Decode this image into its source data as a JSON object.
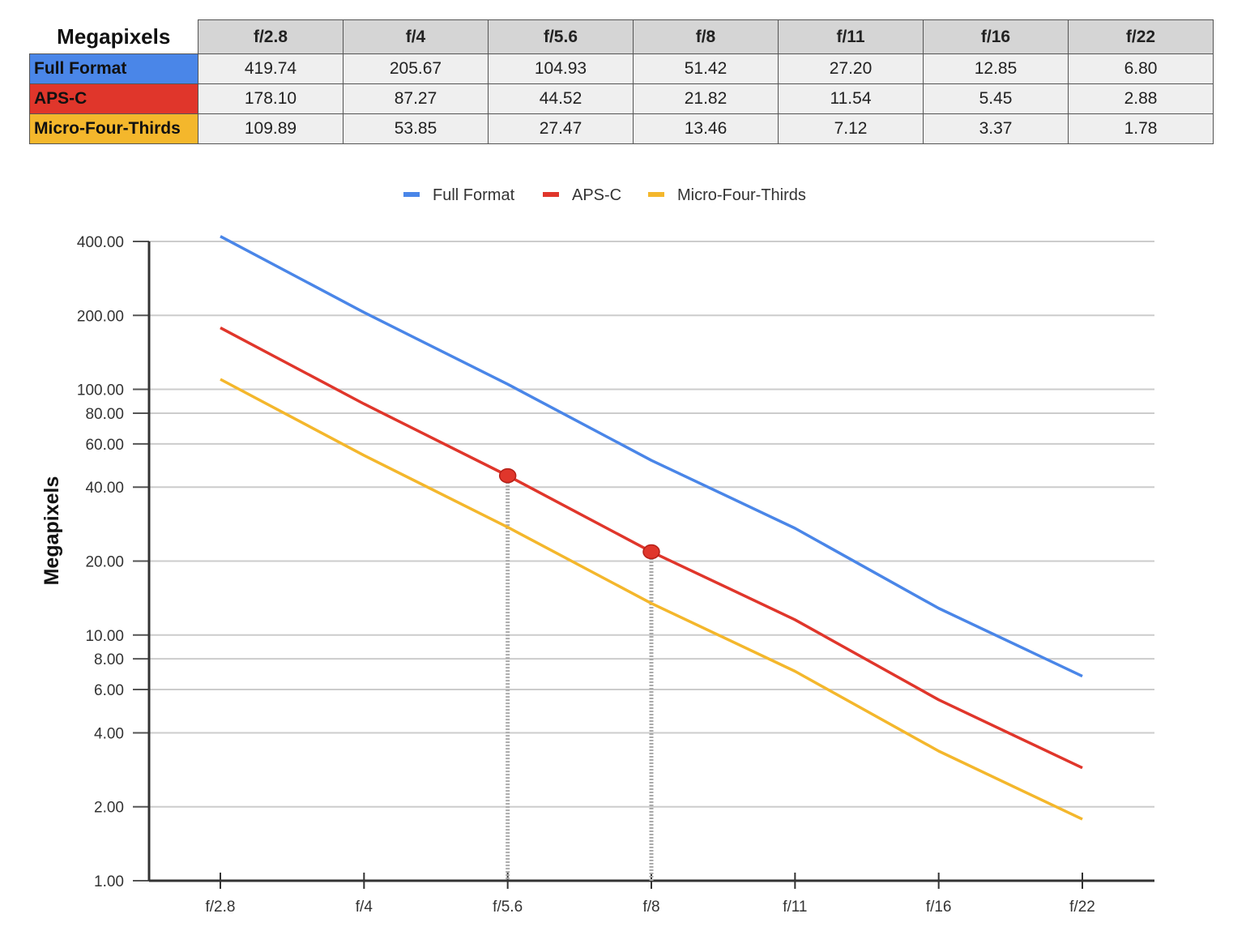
{
  "table": {
    "corner_label": "Megapixels",
    "columns": [
      "f/2.8",
      "f/4",
      "f/5.6",
      "f/8",
      "f/11",
      "f/16",
      "f/22"
    ],
    "rows": [
      {
        "label": "Full Format",
        "color": "#4a86e8",
        "values": [
          "419.74",
          "205.67",
          "104.93",
          "51.42",
          "27.20",
          "12.85",
          "6.80"
        ]
      },
      {
        "label": "APS-C",
        "color": "#e0362b",
        "values": [
          "178.10",
          "87.27",
          "44.52",
          "21.82",
          "11.54",
          "5.45",
          "2.88"
        ]
      },
      {
        "label": "Micro-Four-Thirds",
        "color": "#f4b72c",
        "values": [
          "109.89",
          "53.85",
          "27.47",
          "13.46",
          "7.12",
          "3.37",
          "1.78"
        ]
      }
    ]
  },
  "chart_data": {
    "type": "line",
    "ylabel": "Megapixels",
    "yscale": "log",
    "ylim": [
      1,
      400
    ],
    "categories": [
      "f/2.8",
      "f/4",
      "f/5.6",
      "f/8",
      "f/11",
      "f/16",
      "f/22"
    ],
    "yticks": [
      1,
      2,
      4,
      6,
      8,
      10,
      20,
      40,
      60,
      80,
      100,
      200,
      400
    ],
    "ytick_labels": [
      "1.00",
      "2.00",
      "4.00",
      "6.00",
      "8.00",
      "10.00",
      "20.00",
      "40.00",
      "60.00",
      "80.00",
      "100.00",
      "200.00",
      "400.00"
    ],
    "grid": true,
    "legend_position": "top",
    "series": [
      {
        "name": "Full Format",
        "color": "#4a86e8",
        "values": [
          419.74,
          205.67,
          104.93,
          51.42,
          27.2,
          12.85,
          6.8
        ]
      },
      {
        "name": "APS-C",
        "color": "#e0362b",
        "values": [
          178.1,
          87.27,
          44.52,
          21.82,
          11.54,
          5.45,
          2.88
        ]
      },
      {
        "name": "Micro-Four-Thirds",
        "color": "#f4b72c",
        "values": [
          109.89,
          53.85,
          27.47,
          13.46,
          7.12,
          3.37,
          1.78
        ]
      }
    ],
    "highlight_points": [
      {
        "series": "APS-C",
        "x": "f/5.6",
        "y": 44.52
      },
      {
        "series": "APS-C",
        "x": "f/8",
        "y": 21.82
      }
    ]
  }
}
